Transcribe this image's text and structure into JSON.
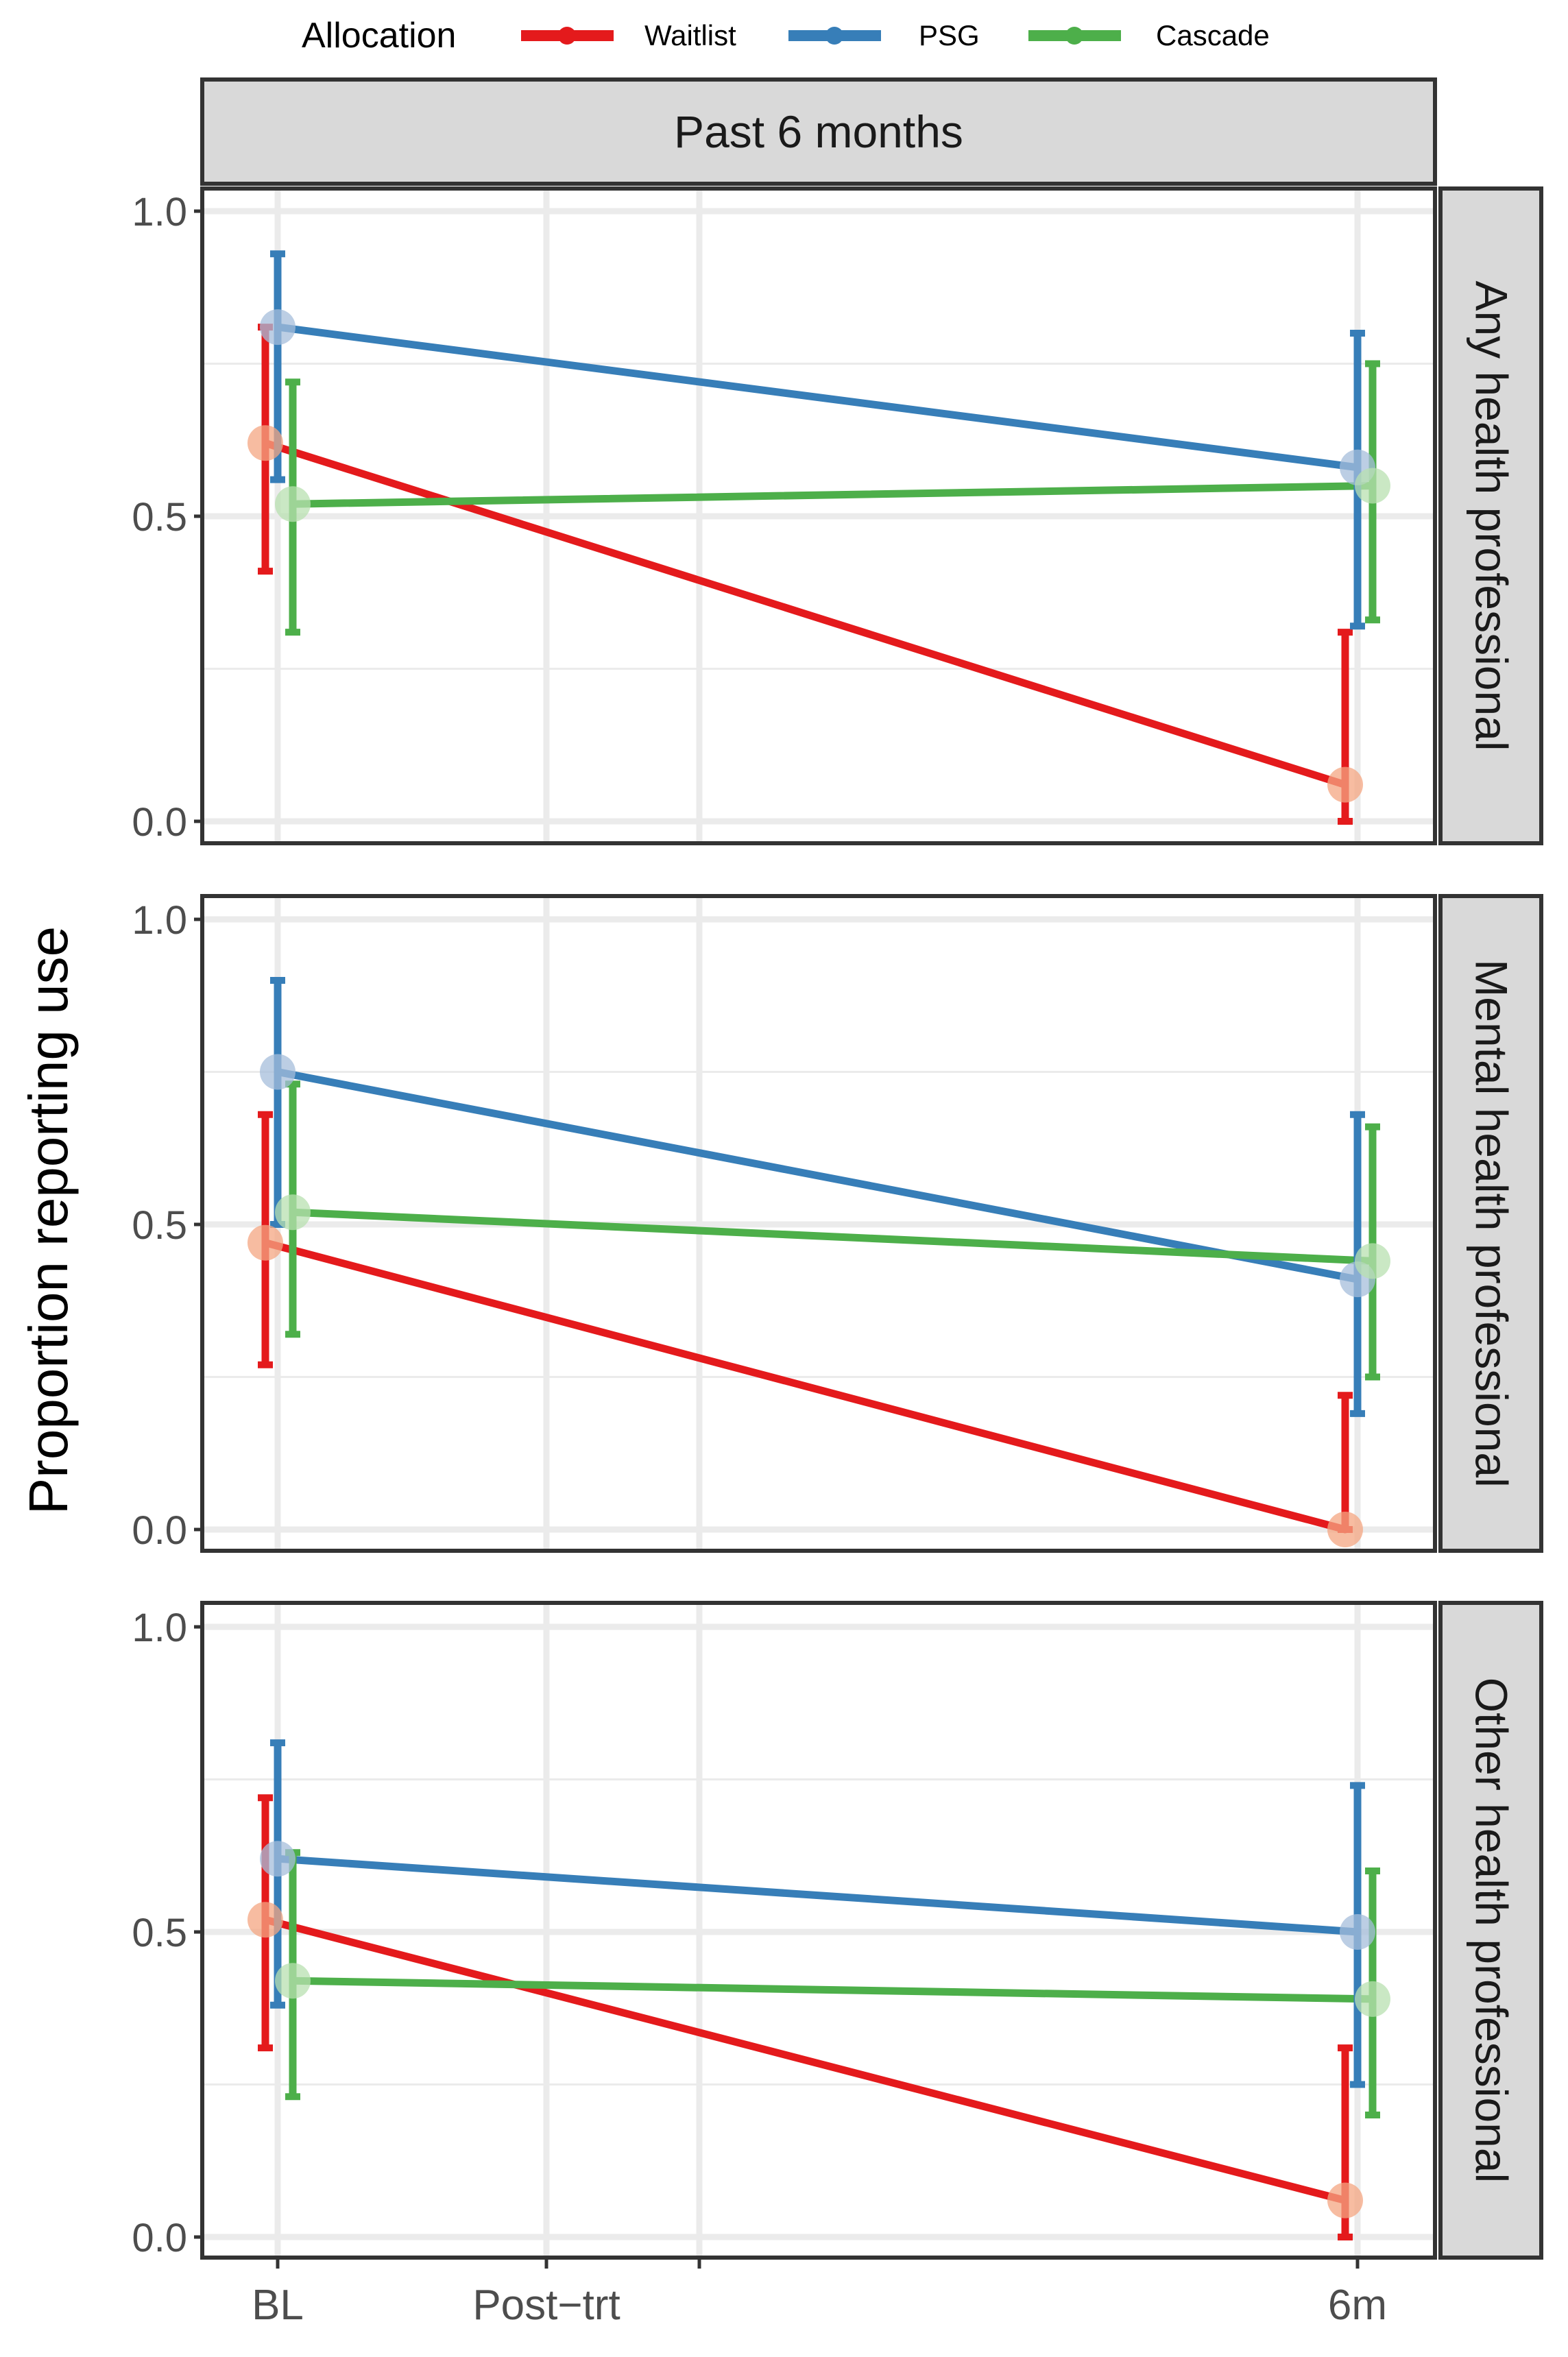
{
  "chart_data": {
    "type": "line",
    "legend_title": "Allocation",
    "legend_position": "top",
    "column_strip": "Past 6 months",
    "ylabel": "Proportion reporting use",
    "xlabel": "",
    "x_tick_labels": [
      "BL",
      "Post−trt",
      "6m"
    ],
    "y_tick_labels": [
      "0.0",
      "0.5",
      "1.0"
    ],
    "ylim": [
      -0.05,
      1.05
    ],
    "grid": true,
    "series": [
      {
        "name": "Waitlist",
        "color": "#e41a1c",
        "point_color": "#f4a582"
      },
      {
        "name": "PSG",
        "color": "#377eb8",
        "point_color": "#a6bddb"
      },
      {
        "name": "Cascade",
        "color": "#4daf4a",
        "point_color": "#b8e0b0"
      }
    ],
    "panels": [
      {
        "label": "Any health professional",
        "data": {
          "Waitlist": [
            {
              "x": "BL",
              "y": 0.62,
              "lo": 0.41,
              "hi": 0.81
            },
            {
              "x": "6m",
              "y": 0.06,
              "lo": 0.0,
              "hi": 0.31
            }
          ],
          "PSG": [
            {
              "x": "BL",
              "y": 0.81,
              "lo": 0.56,
              "hi": 0.93
            },
            {
              "x": "6m",
              "y": 0.58,
              "lo": 0.32,
              "hi": 0.8
            }
          ],
          "Cascade": [
            {
              "x": "BL",
              "y": 0.52,
              "lo": 0.31,
              "hi": 0.72
            },
            {
              "x": "6m",
              "y": 0.55,
              "lo": 0.33,
              "hi": 0.75
            }
          ]
        }
      },
      {
        "label": "Mental health professional",
        "data": {
          "Waitlist": [
            {
              "x": "BL",
              "y": 0.47,
              "lo": 0.27,
              "hi": 0.68
            },
            {
              "x": "6m",
              "y": 0.0,
              "lo": 0.0,
              "hi": 0.22
            }
          ],
          "PSG": [
            {
              "x": "BL",
              "y": 0.75,
              "lo": 0.5,
              "hi": 0.9
            },
            {
              "x": "6m",
              "y": 0.41,
              "lo": 0.19,
              "hi": 0.68
            }
          ],
          "Cascade": [
            {
              "x": "BL",
              "y": 0.52,
              "lo": 0.32,
              "hi": 0.73
            },
            {
              "x": "6m",
              "y": 0.44,
              "lo": 0.25,
              "hi": 0.66
            }
          ]
        }
      },
      {
        "label": "Other health professional",
        "data": {
          "Waitlist": [
            {
              "x": "BL",
              "y": 0.52,
              "lo": 0.31,
              "hi": 0.72
            },
            {
              "x": "6m",
              "y": 0.06,
              "lo": 0.0,
              "hi": 0.31
            }
          ],
          "PSG": [
            {
              "x": "BL",
              "y": 0.62,
              "lo": 0.38,
              "hi": 0.81
            },
            {
              "x": "6m",
              "y": 0.5,
              "lo": 0.25,
              "hi": 0.74
            }
          ],
          "Cascade": [
            {
              "x": "BL",
              "y": 0.42,
              "lo": 0.23,
              "hi": 0.63
            },
            {
              "x": "6m",
              "y": 0.39,
              "lo": 0.2,
              "hi": 0.6
            }
          ]
        }
      }
    ]
  }
}
